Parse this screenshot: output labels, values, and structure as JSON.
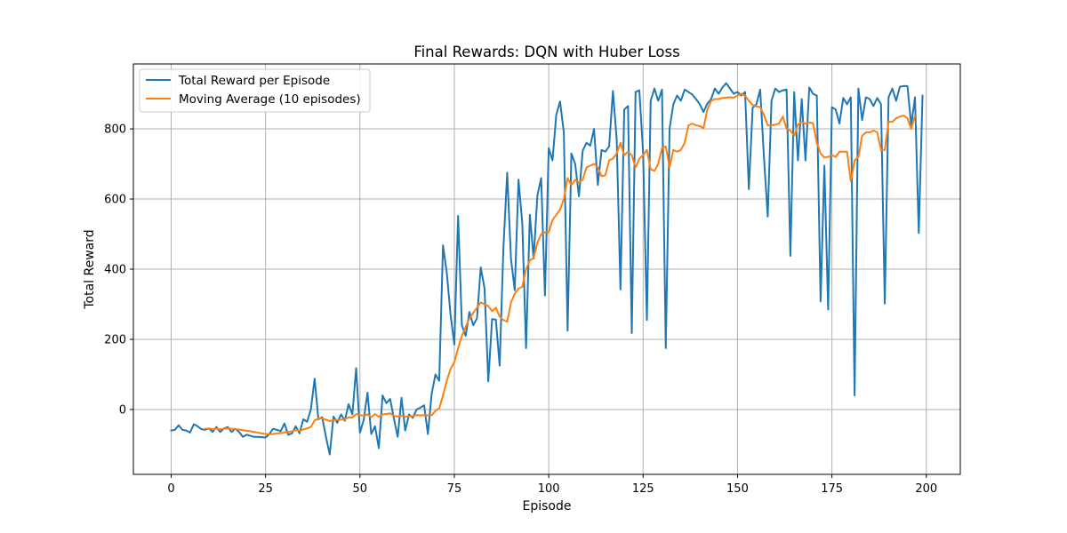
{
  "chart_data": {
    "type": "line",
    "title": "Final Rewards: DQN with Huber Loss",
    "xlabel": "Episode",
    "ylabel": "Total Reward",
    "xlim": [
      -10,
      209
    ],
    "ylim": [
      -185,
      985
    ],
    "xticks": [
      0,
      25,
      50,
      75,
      100,
      125,
      150,
      175,
      200
    ],
    "yticks": [
      0,
      200,
      400,
      600,
      800
    ],
    "grid": true,
    "legend_position": "top-left",
    "series": [
      {
        "name": "Total Reward per Episode",
        "color": "#1f77b4",
        "values": [
          -60,
          -58,
          -45,
          -58,
          -60,
          -66,
          -42,
          -48,
          -56,
          -58,
          -54,
          -64,
          -50,
          -64,
          -54,
          -50,
          -64,
          -55,
          -64,
          -78,
          -72,
          -75,
          -78,
          -78,
          -79,
          -80,
          -70,
          -55,
          -58,
          -62,
          -40,
          -72,
          -68,
          -48,
          -68,
          -28,
          -35,
          0,
          88,
          -28,
          -22,
          -78,
          -128,
          -20,
          -38,
          -14,
          -32,
          15,
          -14,
          118,
          -66,
          -30,
          48,
          -70,
          -48,
          -110,
          40,
          18,
          30,
          -26,
          -78,
          33,
          -60,
          -14,
          -24,
          0,
          5,
          12,
          -70,
          45,
          100,
          82,
          468,
          390,
          270,
          185,
          552,
          240,
          210,
          278,
          240,
          260,
          405,
          345,
          80,
          258,
          256,
          125,
          460,
          675,
          430,
          340,
          655,
          530,
          175,
          555,
          430,
          610,
          660,
          325,
          745,
          710,
          840,
          878,
          790,
          225,
          730,
          700,
          608,
          738,
          760,
          752,
          800,
          640,
          740,
          735,
          750,
          908,
          770,
          342,
          855,
          865,
          218,
          905,
          910,
          730,
          255,
          880,
          915,
          880,
          912,
          175,
          800,
          870,
          895,
          880,
          912,
          905,
          898,
          885,
          870,
          848,
          872,
          885,
          915,
          900,
          918,
          930,
          915,
          900,
          905,
          895,
          905,
          628,
          860,
          870,
          912,
          720,
          550,
          880,
          915,
          905,
          910,
          912,
          438,
          905,
          710,
          885,
          710,
          918,
          900,
          895,
          308,
          695,
          285,
          862,
          855,
          815,
          888,
          870,
          890,
          40,
          915,
          825,
          890,
          885,
          865,
          888,
          870,
          302,
          890,
          915,
          880,
          920,
          922,
          922,
          810,
          890,
          503,
          895
        ]
      },
      {
        "name": "Moving Average (10 episodes)",
        "color": "#ff7f0e",
        "values": [
          null,
          null,
          null,
          null,
          null,
          null,
          null,
          null,
          null,
          -55,
          -54,
          -56,
          -55,
          -56,
          -55,
          -54,
          -55,
          -56,
          -57,
          -59,
          -61,
          -62,
          -64,
          -66,
          -68,
          -70,
          -70,
          -70,
          -68,
          -68,
          -65,
          -64,
          -62,
          -59,
          -61,
          -57,
          -54,
          -50,
          -31,
          -26,
          -25,
          -29,
          -33,
          -30,
          -30,
          -29,
          -28,
          -22,
          -23,
          -13,
          -17,
          -17,
          -14,
          -22,
          -13,
          -21,
          -14,
          -13,
          -11,
          -18,
          -20,
          -18,
          -21,
          -19,
          -19,
          -16,
          -17,
          -16,
          -17,
          -16,
          -4,
          3,
          40,
          82,
          115,
          135,
          175,
          210,
          235,
          260,
          275,
          290,
          305,
          300,
          295,
          280,
          290,
          265,
          255,
          250,
          305,
          330,
          345,
          350,
          400,
          425,
          432,
          475,
          500,
          505,
          505,
          540,
          555,
          570,
          600,
          660,
          640,
          655,
          648,
          655,
          690,
          695,
          700,
          690,
          665,
          668,
          710,
          715,
          730,
          760,
          725,
          735,
          725,
          690,
          715,
          725,
          740,
          685,
          680,
          700,
          745,
          750,
          690,
          740,
          735,
          740,
          760,
          810,
          815,
          810,
          808,
          802,
          855,
          880,
          885,
          885,
          888,
          889,
          890,
          889,
          895,
          900,
          895,
          880,
          868,
          864,
          862,
          840,
          810,
          810,
          812,
          815,
          835,
          800,
          795,
          780,
          812,
          820,
          815,
          818,
          816,
          760,
          730,
          718,
          720,
          725,
          720,
          735,
          735,
          735,
          650,
          710,
          720,
          780,
          790,
          790,
          795,
          790,
          740,
          740,
          820,
          820,
          830,
          835,
          838,
          830,
          800,
          838
        ]
      }
    ]
  }
}
